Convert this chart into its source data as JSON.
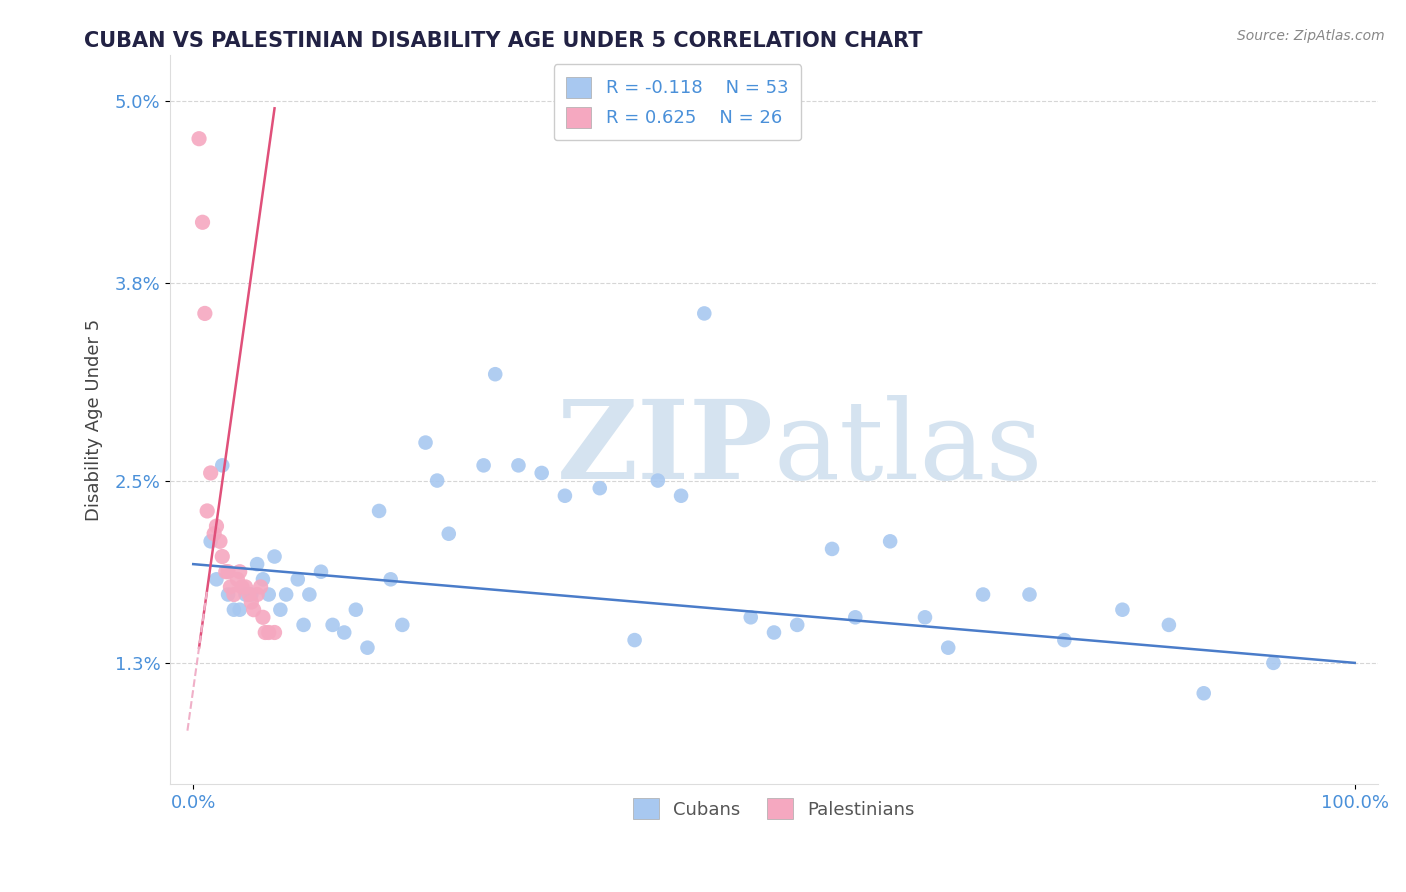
{
  "title": "CUBAN VS PALESTINIAN DISABILITY AGE UNDER 5 CORRELATION CHART",
  "source_text": "Source: ZipAtlas.com",
  "ylabel": "Disability Age Under 5",
  "x_min": 0.0,
  "x_max": 100.0,
  "y_min": 0.5,
  "y_max": 5.3,
  "y_ticks": [
    1.3,
    2.5,
    3.8,
    5.0
  ],
  "y_tick_labels": [
    "1.3%",
    "2.5%",
    "3.8%",
    "5.0%"
  ],
  "x_ticks": [
    0,
    100
  ],
  "x_tick_labels": [
    "0.0%",
    "100.0%"
  ],
  "blue_color": "#a8c8f0",
  "pink_color": "#f5a8c0",
  "blue_line_color": "#4a7cc9",
  "pink_line_color": "#e0507a",
  "pink_dashed_color": "#f0b0c8",
  "legend_blue_label": "R = -0.118    N = 53",
  "legend_pink_label": "R = 0.625    N = 26",
  "legend_label_cubans": "Cubans",
  "legend_label_palestinians": "Palestinians",
  "title_color": "#222244",
  "axis_label_color": "#444444",
  "tick_label_color": "#4a90d9",
  "grid_color": "#cccccc",
  "watermark_color": "#d5e3f0",
  "cubans_x": [
    1.5,
    2.0,
    2.5,
    3.0,
    3.5,
    4.0,
    4.5,
    5.0,
    5.5,
    6.0,
    6.5,
    7.0,
    7.5,
    8.0,
    9.0,
    9.5,
    10.0,
    11.0,
    12.0,
    13.0,
    14.0,
    15.0,
    16.0,
    17.0,
    18.0,
    20.0,
    21.0,
    22.0,
    25.0,
    26.0,
    28.0,
    30.0,
    32.0,
    35.0,
    38.0,
    40.0,
    42.0,
    44.0,
    48.0,
    50.0,
    52.0,
    55.0,
    57.0,
    60.0,
    63.0,
    65.0,
    68.0,
    72.0,
    75.0,
    80.0,
    84.0,
    87.0,
    93.0
  ],
  "cubans_y": [
    2.1,
    1.85,
    2.6,
    1.75,
    1.65,
    1.65,
    1.75,
    1.75,
    1.95,
    1.85,
    1.75,
    2.0,
    1.65,
    1.75,
    1.85,
    1.55,
    1.75,
    1.9,
    1.55,
    1.5,
    1.65,
    1.4,
    2.3,
    1.85,
    1.55,
    2.75,
    2.5,
    2.15,
    2.6,
    3.2,
    2.6,
    2.55,
    2.4,
    2.45,
    1.45,
    2.5,
    2.4,
    3.6,
    1.6,
    1.5,
    1.55,
    2.05,
    1.6,
    2.1,
    1.6,
    1.4,
    1.75,
    1.75,
    1.45,
    1.65,
    1.55,
    1.1,
    1.3
  ],
  "palestinians_x": [
    0.5,
    0.8,
    1.0,
    1.2,
    1.5,
    1.8,
    2.0,
    2.3,
    2.5,
    2.8,
    3.0,
    3.2,
    3.5,
    3.8,
    4.0,
    4.2,
    4.5,
    4.8,
    5.0,
    5.2,
    5.5,
    5.8,
    6.0,
    6.2,
    6.5,
    7.0
  ],
  "palestinians_y": [
    4.75,
    4.2,
    3.6,
    2.3,
    2.55,
    2.15,
    2.2,
    2.1,
    2.0,
    1.9,
    1.9,
    1.8,
    1.75,
    1.85,
    1.9,
    1.8,
    1.8,
    1.75,
    1.7,
    1.65,
    1.75,
    1.8,
    1.6,
    1.5,
    1.5,
    1.5
  ],
  "blue_line_x0": 0.0,
  "blue_line_y0": 1.95,
  "blue_line_x1": 100.0,
  "blue_line_y1": 1.3,
  "pink_line_x0": 0.5,
  "pink_line_y0": 1.4,
  "pink_line_x1": 7.0,
  "pink_line_y1": 4.95,
  "pink_dash_x0": -0.5,
  "pink_dash_x1": 1.2
}
